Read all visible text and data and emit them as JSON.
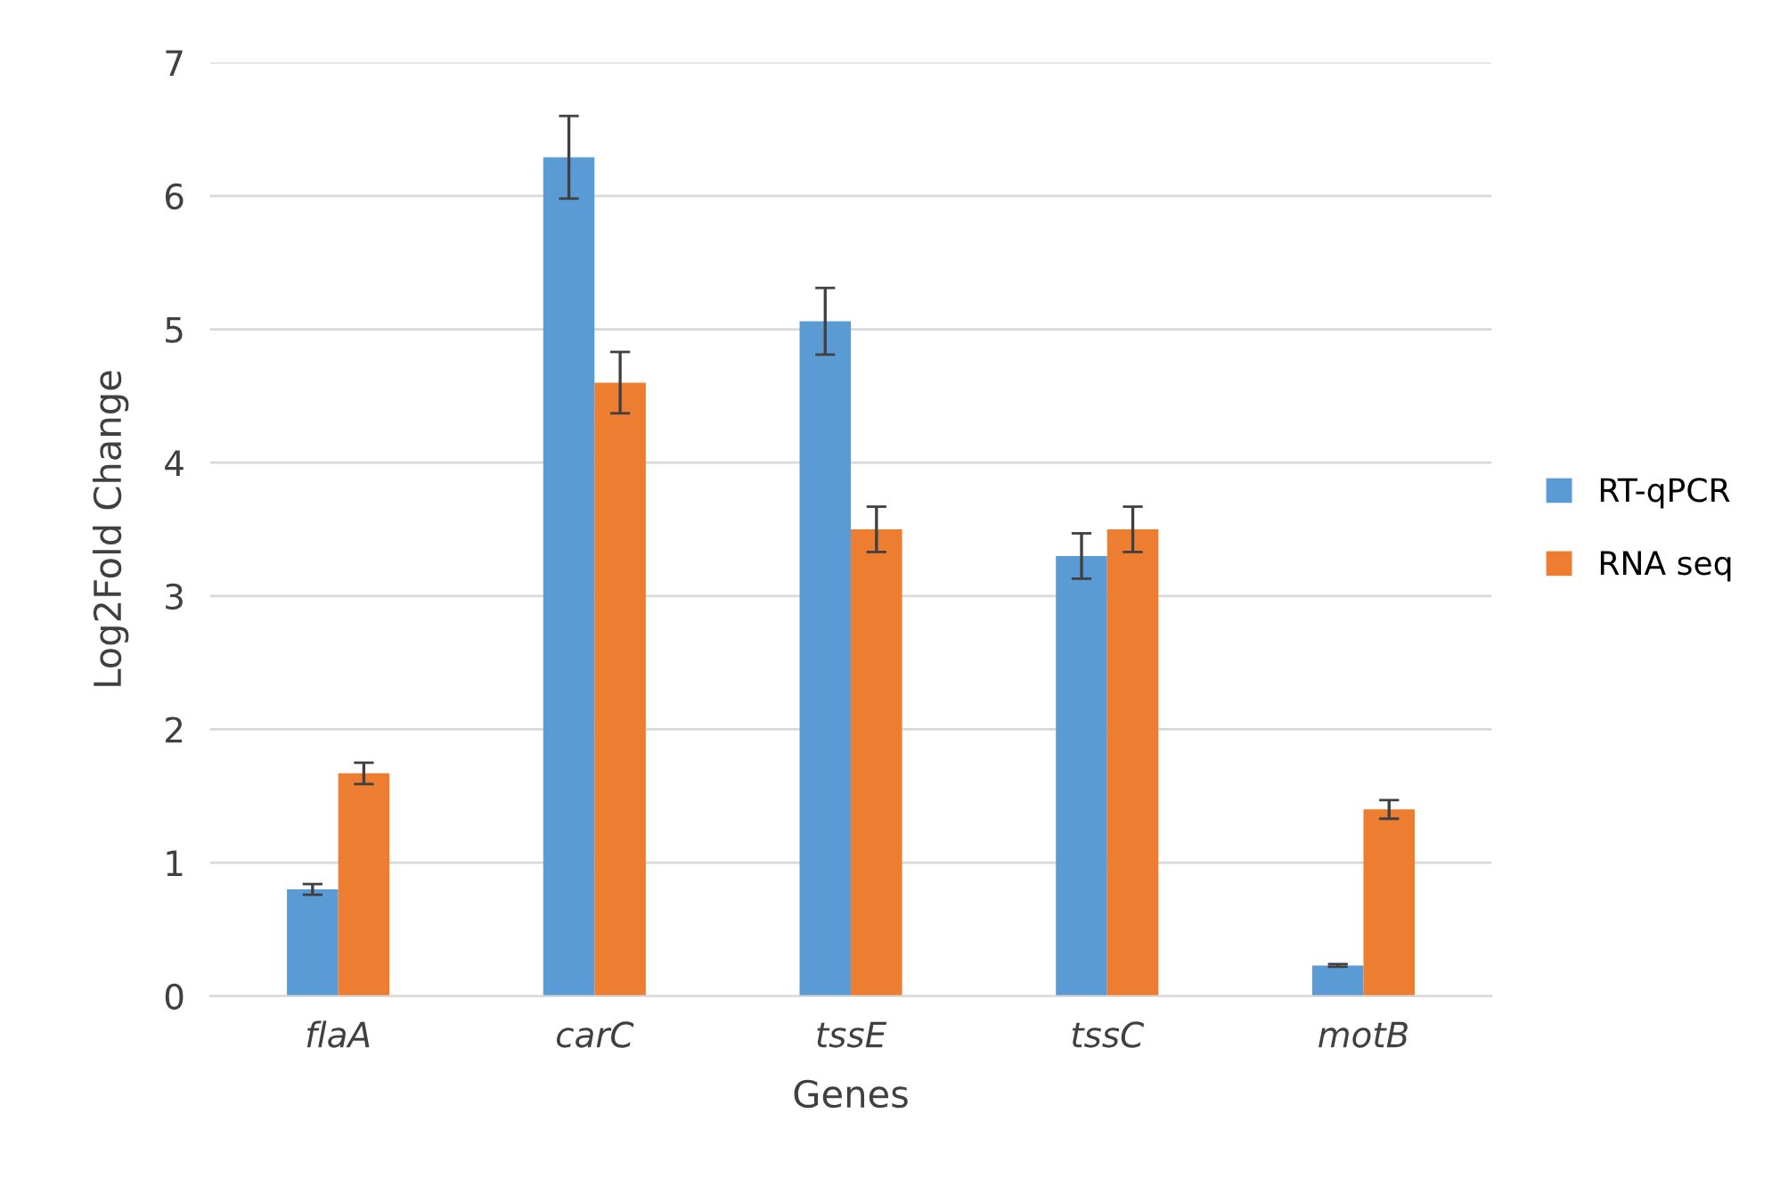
{
  "chart_data": {
    "type": "bar",
    "xlabel": "Genes",
    "ylabel": "Log2Fold Change",
    "categories": [
      "flaA",
      "carC",
      "tssE",
      "tssC",
      "motB"
    ],
    "series": [
      {
        "name": "RT-qPCR",
        "color": "#5b9bd5",
        "values": [
          0.8,
          6.29,
          5.06,
          3.3,
          0.23
        ],
        "errors": [
          0.04,
          0.31,
          0.25,
          0.17,
          0.01
        ]
      },
      {
        "name": "RNA seq",
        "color": "#ed7d31",
        "values": [
          1.67,
          4.6,
          3.5,
          3.5,
          1.4
        ],
        "errors": [
          0.08,
          0.23,
          0.17,
          0.17,
          0.07
        ]
      }
    ],
    "ylim": [
      0,
      7
    ],
    "yticks": [
      0,
      1,
      2,
      3,
      4,
      5,
      6,
      7
    ],
    "grid": "y",
    "legend": "right"
  }
}
